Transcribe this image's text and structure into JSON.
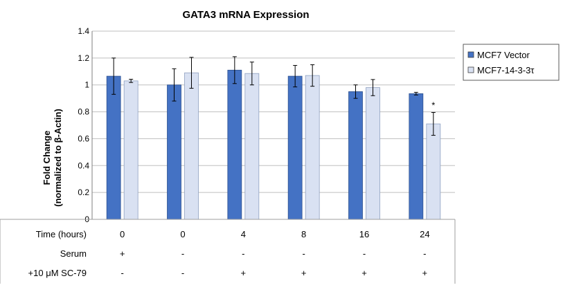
{
  "chart_data": {
    "type": "bar",
    "title": "GATA3 mRNA Expression",
    "ylabel_line1": "Fold Change",
    "ylabel_line2": "(normalized to β-Actin)",
    "ylim": [
      0,
      1.4
    ],
    "yticks": [
      "0",
      "0.2",
      "0.4",
      "0.6",
      "0.8",
      "1",
      "1.2",
      "1.4"
    ],
    "ytick_values": [
      0,
      0.2,
      0.4,
      0.6,
      0.8,
      1.0,
      1.2,
      1.4
    ],
    "series": [
      {
        "name": "MCF7 Vector",
        "color": "#4472c4",
        "values": [
          1.065,
          1.0,
          1.11,
          1.065,
          0.95,
          0.935
        ],
        "errors": [
          0.135,
          0.12,
          0.1,
          0.08,
          0.05,
          0.01
        ]
      },
      {
        "name": "MCF7-14-3-3τ",
        "color": "#d9e1f2",
        "values": [
          1.03,
          1.09,
          1.085,
          1.07,
          0.98,
          0.71
        ],
        "errors": [
          0.012,
          0.115,
          0.085,
          0.08,
          0.06,
          0.085
        ]
      }
    ],
    "annotations": [
      {
        "group": 5,
        "series": 1,
        "text": "*"
      }
    ],
    "table": {
      "rows": [
        {
          "label": "Time (hours)",
          "values": [
            "0",
            "0",
            "4",
            "8",
            "16",
            "24"
          ]
        },
        {
          "label": "Serum",
          "values": [
            "+",
            "-",
            "-",
            "-",
            "-",
            "-"
          ]
        },
        {
          "label": "+10 μM SC-79",
          "values": [
            "-",
            "-",
            "+",
            "+",
            "+",
            "+"
          ]
        }
      ]
    }
  }
}
